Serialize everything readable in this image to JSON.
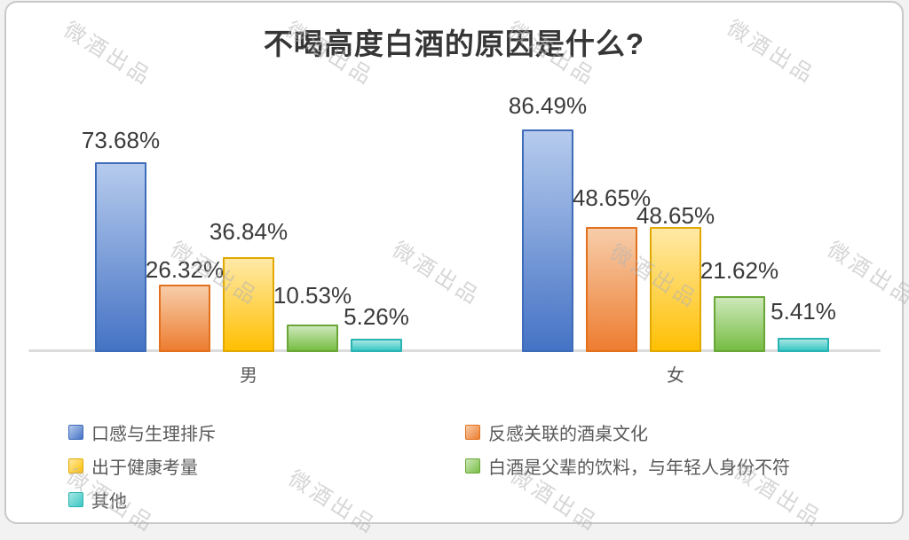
{
  "title": "不喝高度白酒的原因是什么?",
  "watermark_text": "微酒出品",
  "chart_data": {
    "type": "bar",
    "categories": [
      "男",
      "女"
    ],
    "series": [
      {
        "name": "口感与生理排斥",
        "color": "blue",
        "values": [
          73.68,
          86.49
        ]
      },
      {
        "name": "反感关联的酒桌文化",
        "color": "orange",
        "values": [
          26.32,
          48.65
        ]
      },
      {
        "name": "出于健康考量",
        "color": "yellow",
        "values": [
          36.84,
          48.65
        ]
      },
      {
        "name": "白酒是父辈的饮料，与年轻人身份不符",
        "color": "green",
        "values": [
          10.53,
          21.62
        ]
      },
      {
        "name": "其他",
        "color": "teal",
        "values": [
          5.26,
          5.41
        ]
      }
    ],
    "data_labels": [
      [
        "73.68%",
        "26.32%",
        "36.84%",
        "10.53%",
        "5.26%"
      ],
      [
        "86.49%",
        "48.65%",
        "48.65%",
        "21.62%",
        "5.41%"
      ]
    ],
    "title": "不喝高度白酒的原因是什么?",
    "xlabel": "",
    "ylabel": "",
    "ylim": [
      0,
      100
    ],
    "grid": false,
    "legend_position": "bottom"
  },
  "legend": {
    "items": [
      {
        "label": "口感与生理排斥",
        "color": "blue"
      },
      {
        "label": "反感关联的酒桌文化",
        "color": "orange"
      },
      {
        "label": "出于健康考量",
        "color": "yellow"
      },
      {
        "label": "白酒是父辈的饮料，与年轻人身份不符",
        "color": "green"
      },
      {
        "label": "其他",
        "color": "teal"
      }
    ]
  },
  "colors": {
    "blue": {
      "border": "#3e6cb8",
      "top": "#b6cbed",
      "bottom": "#4573c5"
    },
    "orange": {
      "border": "#e2701c",
      "top": "#f7cda9",
      "bottom": "#ed7d31"
    },
    "yellow": {
      "border": "#e0a800",
      "top": "#ffe9a6",
      "bottom": "#ffc003"
    },
    "green": {
      "border": "#69a636",
      "top": "#cde8ba",
      "bottom": "#77bd44"
    },
    "teal": {
      "border": "#2ab3b3",
      "top": "#a5e6e3",
      "bottom": "#3bc7c4"
    }
  }
}
